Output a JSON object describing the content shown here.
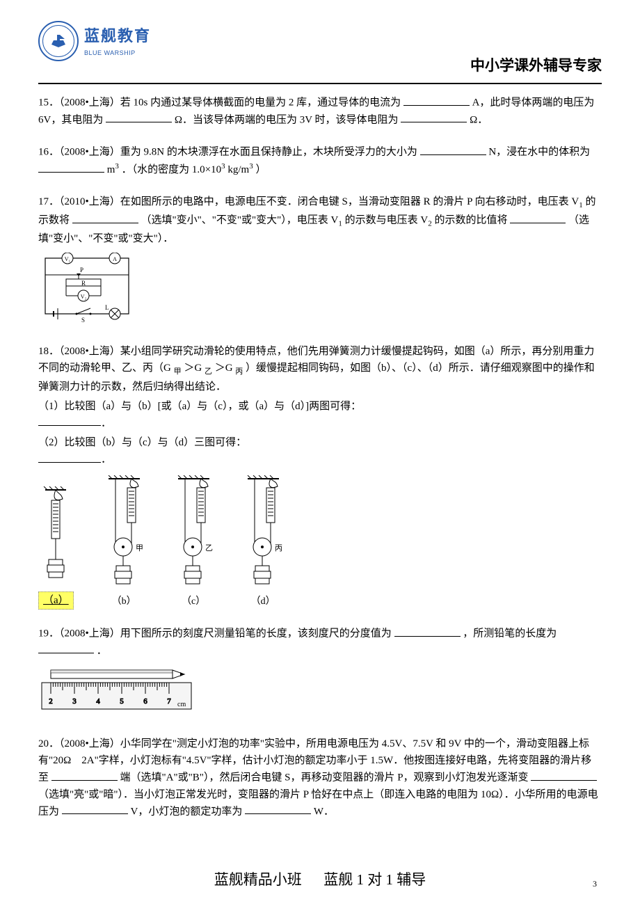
{
  "header": {
    "brand_cn": "蓝舰教育",
    "brand_en": "BLUE WARSHIP",
    "right_title": "中小学课外辅导专家",
    "logo_color": "#2a5fb0"
  },
  "q15": {
    "text_a": "15．（2008•上海）若 10s 内通过某导体横截面的电量为 2 库，通过导体的电流为",
    "text_b": "A，此时导体两端的电压为 6V，其电阻为",
    "text_c": "Ω．当该导体两端的电压为 3V 时，该导体电阻为",
    "text_d": "Ω．"
  },
  "q16": {
    "text_a": "16．（2008•上海）重为 9.8N 的木块漂浮在水面且保持静止，木块所受浮力的大小为",
    "text_b": "N，浸在水中的体积为",
    "text_c": "m",
    "text_d": "．（水的密度为 1.0×10",
    "text_e": "kg/m",
    "text_f": "）"
  },
  "q17": {
    "text_a": "17．（2010•上海）在如图所示的电路中，电源电压不变．闭合电键 S，当滑动变阻器 R 的滑片 P 向右移动时，电压表 V",
    "text_b": " 的示数将",
    "text_c": "（选填\"变小\"、\"不变\"或\"变大\"），电压表 V",
    "text_d": " 的示数与电压表 V",
    "text_e": " 的示数的比值将",
    "text_f": "（选填\"变小\"、\"不变\"或\"变大\"）．",
    "circuit_labels": {
      "v1": "V₁",
      "a": "A",
      "p": "P",
      "r": "R",
      "v2": "V₂",
      "s": "S",
      "l": "L"
    }
  },
  "q18": {
    "text_a": "18．（2008•上海）某小组同学研究动滑轮的使用特点，他们先用弹簧测力计缓慢提起钩码，如图（a）所示，再分别用重力不同的动滑轮甲、乙、丙（G ",
    "sub_jia": "甲",
    "gt1": "＞G ",
    "sub_yi": "乙",
    "gt2": "＞G ",
    "sub_bing": "丙",
    "text_b": "）缓慢提起相同钩码，如图（b）、（c）、（d）所示．请仔细观察图中的操作和弹簧测力计的示数，然后归纳得出结论．",
    "line1": "（1）比较图（a）与（b）[或（a）与（c），或（a）与（d）]两图可得：",
    "line2": "（2）比较图（b）与（c）与（d）三图可得：",
    "labels": {
      "a": "（a）",
      "b": "（b）",
      "c": "（c）",
      "d": "（d）",
      "jia": "甲",
      "yi": "乙",
      "bing": "丙"
    }
  },
  "q19": {
    "text_a": "19．（2008•上海）用下图所示的刻度尺测量铅笔的长度，该刻度尺的分度值为",
    "text_b": "，所测铅笔的长度为",
    "text_c": "．",
    "ruler": {
      "ticks": [
        "2",
        "3",
        "4",
        "5",
        "6",
        "7"
      ],
      "unit": "cm"
    }
  },
  "q20": {
    "text_a": "20．（2008•上海）小华同学在\"测定小灯泡的功率\"实验中，所用电源电压为 4.5V、7.5V 和 9V 中的一个，滑动变阻器上标有\"20Ω　2A\"字样，小灯泡标有\"4.5V\"字样，估计小灯泡的额定功率小于 1.5W．他按图连接好电路，先将变阻器的滑片移至",
    "text_b": "端（选填\"A\"或\"B\"），然后闭合电键 S，再移动变阻器的滑片 P，观察到小灯泡发光逐渐变",
    "text_c": "（选填\"亮\"或\"暗\"）．当小灯泡正常发光时，变阻器的滑片 P 恰好在中点上（即连入电路的电阻为 10Ω）．小华所用的电源电压为",
    "text_d": "V，小灯泡的额定功率为",
    "text_e": "W．"
  },
  "footer": {
    "left": "蓝舰精品小班",
    "right": "蓝舰 1 对 1 辅导",
    "page": "3"
  }
}
